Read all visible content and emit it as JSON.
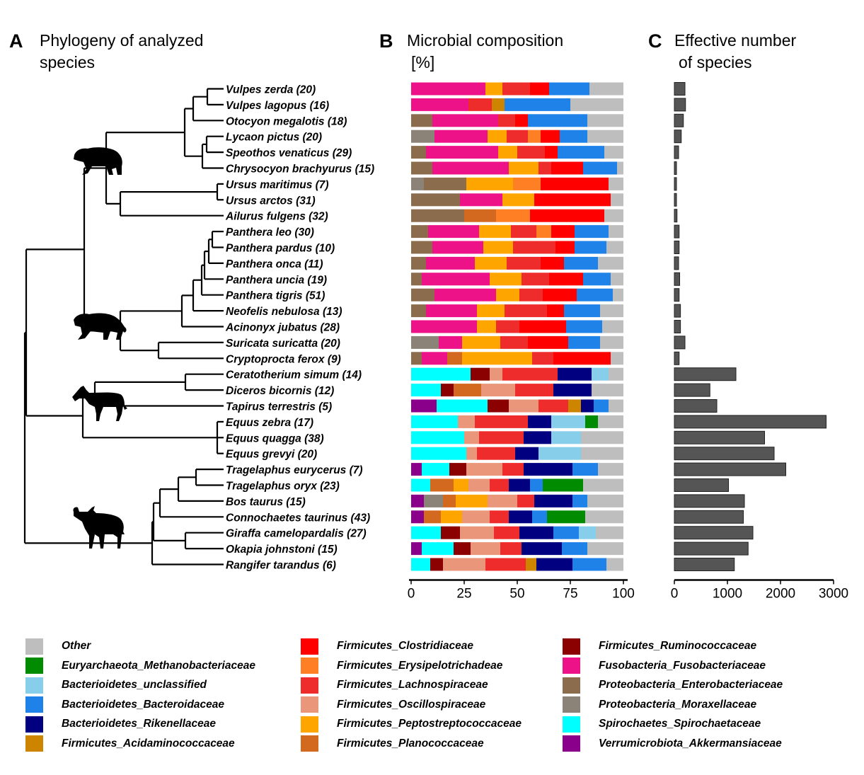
{
  "panels": {
    "A": {
      "letter": "A",
      "title_line1": "Phylogeny of analyzed",
      "title_line2": "species"
    },
    "B": {
      "letter": "B",
      "title_line1": "Microbial composition",
      "title_line2": "[%]"
    },
    "C": {
      "letter": "C",
      "title_line1": "Effective number",
      "title_line2": "of species"
    }
  },
  "silhouettes": [
    "bear-icon",
    "tiger-icon",
    "zebra-icon",
    "wildebeest-icon"
  ],
  "families": [
    {
      "key": "other",
      "label": "Other",
      "color": "#bebebe"
    },
    {
      "key": "methano",
      "label": "Euryarchaeota_Methanobacteriaceae",
      "color": "#008b00"
    },
    {
      "key": "bunclass",
      "label": "Bacterioidetes_unclassified",
      "color": "#87ceeb"
    },
    {
      "key": "bacteroid",
      "label": "Bacterioidetes_Bacteroidaceae",
      "color": "#1e82e8"
    },
    {
      "key": "riken",
      "label": "Bacterioidetes_Rikenellaceae",
      "color": "#000080"
    },
    {
      "key": "acidamino",
      "label": "Firmicutes_Acidaminococcaceae",
      "color": "#cd8500"
    },
    {
      "key": "clostrid",
      "label": "Firmicutes_Clostridiaceae",
      "color": "#ff0000"
    },
    {
      "key": "erysip",
      "label": "Firmicutes_Erysipelotrichadeae",
      "color": "#ff7f24"
    },
    {
      "key": "lachno",
      "label": "Firmicutes_Lachnospiraceae",
      "color": "#ee2c2c"
    },
    {
      "key": "oscill",
      "label": "Firmicutes_Oscillospiraceae",
      "color": "#e9967a"
    },
    {
      "key": "pepto",
      "label": "Firmicutes_Peptostreptococcaceae",
      "color": "#ffa500"
    },
    {
      "key": "planoc",
      "label": "Firmicutes_Planococcaceae",
      "color": "#d2691e"
    },
    {
      "key": "rumino",
      "label": "Firmicutes_Ruminococcaceae",
      "color": "#8b0000"
    },
    {
      "key": "fuso",
      "label": "Fusobacteria_Fusobacteriaceae",
      "color": "#ee1289"
    },
    {
      "key": "entero",
      "label": "Proteobacteria_Enterobacteriaceae",
      "color": "#8b6d4e"
    },
    {
      "key": "morax",
      "label": "Proteobacteria_Moraxellaceae",
      "color": "#8b8378"
    },
    {
      "key": "spiro",
      "label": "Spirochaetes_Spirochaetaceae",
      "color": "#00ffff"
    },
    {
      "key": "akker",
      "label": "Verrumicrobiota_Akkermansiaceae",
      "color": "#8b008b"
    }
  ],
  "chart_data": [
    {
      "type": "bar",
      "orientation": "horizontal-stacked",
      "title": "Microbial composition [%]",
      "xlabel": "",
      "ylabel": "",
      "xlim": [
        0,
        100
      ],
      "xticks": [
        "0",
        "25",
        "50",
        "75",
        "100"
      ],
      "legend": "bottom",
      "categories": [
        "Vulpes zerda (20)",
        "Vulpes lagopus (16)",
        "Otocyon megalotis (18)",
        "Lycaon pictus (20)",
        "Speothos venaticus (29)",
        "Chrysocyon brachyurus (15)",
        "Ursus maritimus (7)",
        "Ursus arctos (31)",
        "Ailurus fulgens (32)",
        "Panthera leo (30)",
        "Panthera pardus (10)",
        "Panthera onca (11)",
        "Panthera uncia (19)",
        "Panthera tigris (51)",
        "Neofelis nebulosa (13)",
        "Acinonyx jubatus (28)",
        "Suricata suricatta (20)",
        "Cryptoprocta ferox (9)",
        "Ceratotherium simum (14)",
        "Diceros bicornis (12)",
        "Tapirus terrestris (5)",
        "Equus zebra (17)",
        "Equus quagga (38)",
        "Equus grevyi (20)",
        "Tragelaphus eurycerus (7)",
        "Tragelaphus oryx (23)",
        "Bos taurus (15)",
        "Connochaetes taurinus (43)",
        "Giraffa camelopardalis (27)",
        "Okapia johnstoni (15)",
        "Rangifer tarandus (6)"
      ],
      "stacks": [
        [
          [
            "fuso",
            35
          ],
          [
            "pepto",
            8
          ],
          [
            "lachno",
            13
          ],
          [
            "clostrid",
            9
          ],
          [
            "bacteroid",
            19
          ],
          [
            "other",
            16
          ]
        ],
        [
          [
            "fuso",
            27
          ],
          [
            "lachno",
            11
          ],
          [
            "acidamino",
            6
          ],
          [
            "bacteroid",
            31
          ],
          [
            "other",
            25
          ]
        ],
        [
          [
            "entero",
            10
          ],
          [
            "fuso",
            31
          ],
          [
            "lachno",
            8
          ],
          [
            "clostrid",
            6
          ],
          [
            "bacteroid",
            28
          ],
          [
            "other",
            17
          ]
        ],
        [
          [
            "morax",
            11
          ],
          [
            "fuso",
            25
          ],
          [
            "pepto",
            9
          ],
          [
            "lachno",
            10
          ],
          [
            "erysip",
            6
          ],
          [
            "clostrid",
            9
          ],
          [
            "bacteroid",
            13
          ],
          [
            "other",
            17
          ]
        ],
        [
          [
            "entero",
            7
          ],
          [
            "fuso",
            34
          ],
          [
            "pepto",
            9
          ],
          [
            "lachno",
            13
          ],
          [
            "clostrid",
            6
          ],
          [
            "bacteroid",
            22
          ],
          [
            "other",
            9
          ]
        ],
        [
          [
            "entero",
            10
          ],
          [
            "fuso",
            36
          ],
          [
            "pepto",
            14
          ],
          [
            "lachno",
            6
          ],
          [
            "clostrid",
            15
          ],
          [
            "bacteroid",
            16
          ],
          [
            "other",
            3
          ]
        ],
        [
          [
            "morax",
            6
          ],
          [
            "entero",
            20
          ],
          [
            "pepto",
            22
          ],
          [
            "erysip",
            13
          ],
          [
            "clostrid",
            32
          ],
          [
            "other",
            7
          ]
        ],
        [
          [
            "entero",
            23
          ],
          [
            "fuso",
            20
          ],
          [
            "pepto",
            15
          ],
          [
            "clostrid",
            36
          ],
          [
            "other",
            6
          ]
        ],
        [
          [
            "entero",
            25
          ],
          [
            "planoc",
            15
          ],
          [
            "erysip",
            16
          ],
          [
            "clostrid",
            35
          ],
          [
            "other",
            9
          ]
        ],
        [
          [
            "entero",
            8
          ],
          [
            "fuso",
            24
          ],
          [
            "pepto",
            15
          ],
          [
            "lachno",
            12
          ],
          [
            "erysip",
            7
          ],
          [
            "clostrid",
            11
          ],
          [
            "bacteroid",
            16
          ],
          [
            "other",
            7
          ]
        ],
        [
          [
            "entero",
            10
          ],
          [
            "fuso",
            24
          ],
          [
            "pepto",
            14
          ],
          [
            "lachno",
            20
          ],
          [
            "clostrid",
            9
          ],
          [
            "bacteroid",
            15
          ],
          [
            "other",
            8
          ]
        ],
        [
          [
            "entero",
            7
          ],
          [
            "fuso",
            23
          ],
          [
            "pepto",
            15
          ],
          [
            "lachno",
            16
          ],
          [
            "clostrid",
            11
          ],
          [
            "bacteroid",
            16
          ],
          [
            "other",
            12
          ]
        ],
        [
          [
            "entero",
            5
          ],
          [
            "fuso",
            32
          ],
          [
            "pepto",
            15
          ],
          [
            "lachno",
            13
          ],
          [
            "clostrid",
            16
          ],
          [
            "bacteroid",
            13
          ],
          [
            "other",
            6
          ]
        ],
        [
          [
            "entero",
            11
          ],
          [
            "fuso",
            29
          ],
          [
            "pepto",
            11
          ],
          [
            "lachno",
            11
          ],
          [
            "clostrid",
            16
          ],
          [
            "bacteroid",
            17
          ],
          [
            "other",
            5
          ]
        ],
        [
          [
            "entero",
            7
          ],
          [
            "fuso",
            24
          ],
          [
            "pepto",
            13
          ],
          [
            "lachno",
            20
          ],
          [
            "clostrid",
            8
          ],
          [
            "bacteroid",
            17
          ],
          [
            "other",
            11
          ]
        ],
        [
          [
            "fuso",
            31
          ],
          [
            "pepto",
            9
          ],
          [
            "lachno",
            11
          ],
          [
            "clostrid",
            22
          ],
          [
            "bacteroid",
            17
          ],
          [
            "other",
            10
          ]
        ],
        [
          [
            "morax",
            13
          ],
          [
            "fuso",
            11
          ],
          [
            "pepto",
            18
          ],
          [
            "lachno",
            13
          ],
          [
            "clostrid",
            19
          ],
          [
            "bacteroid",
            15
          ],
          [
            "other",
            11
          ]
        ],
        [
          [
            "entero",
            5
          ],
          [
            "fuso",
            12
          ],
          [
            "planoc",
            7
          ],
          [
            "pepto",
            33
          ],
          [
            "lachno",
            10
          ],
          [
            "clostrid",
            27
          ],
          [
            "other",
            6
          ]
        ],
        [
          [
            "spiro",
            28
          ],
          [
            "rumino",
            9
          ],
          [
            "oscill",
            6
          ],
          [
            "lachno",
            26
          ],
          [
            "riken",
            16
          ],
          [
            "bunclass",
            8
          ],
          [
            "other",
            7
          ]
        ],
        [
          [
            "spiro",
            14
          ],
          [
            "rumino",
            6
          ],
          [
            "planoc",
            13
          ],
          [
            "oscill",
            16
          ],
          [
            "lachno",
            18
          ],
          [
            "riken",
            18
          ],
          [
            "other",
            15
          ]
        ],
        [
          [
            "akker",
            12
          ],
          [
            "spiro",
            24
          ],
          [
            "rumino",
            10
          ],
          [
            "oscill",
            14
          ],
          [
            "lachno",
            14
          ],
          [
            "acidamino",
            6
          ],
          [
            "riken",
            6
          ],
          [
            "bacteroid",
            7
          ],
          [
            "other",
            7
          ]
        ],
        [
          [
            "spiro",
            22
          ],
          [
            "oscill",
            8
          ],
          [
            "lachno",
            25
          ],
          [
            "riken",
            11
          ],
          [
            "bunclass",
            16
          ],
          [
            "methano",
            6
          ],
          [
            "other",
            12
          ]
        ],
        [
          [
            "spiro",
            25
          ],
          [
            "oscill",
            7
          ],
          [
            "lachno",
            21
          ],
          [
            "riken",
            13
          ],
          [
            "bunclass",
            14
          ],
          [
            "other",
            20
          ]
        ],
        [
          [
            "spiro",
            26
          ],
          [
            "oscill",
            5
          ],
          [
            "lachno",
            18
          ],
          [
            "riken",
            11
          ],
          [
            "bunclass",
            20
          ],
          [
            "other",
            20
          ]
        ],
        [
          [
            "akker",
            5
          ],
          [
            "spiro",
            13
          ],
          [
            "rumino",
            8
          ],
          [
            "oscill",
            17
          ],
          [
            "lachno",
            10
          ],
          [
            "riken",
            23
          ],
          [
            "bacteroid",
            12
          ],
          [
            "other",
            12
          ]
        ],
        [
          [
            "spiro",
            9
          ],
          [
            "planoc",
            11
          ],
          [
            "pepto",
            7
          ],
          [
            "oscill",
            10
          ],
          [
            "lachno",
            9
          ],
          [
            "riken",
            10
          ],
          [
            "bacteroid",
            6
          ],
          [
            "methano",
            19
          ],
          [
            "other",
            19
          ]
        ],
        [
          [
            "akker",
            6
          ],
          [
            "morax",
            9
          ],
          [
            "planoc",
            6
          ],
          [
            "pepto",
            15
          ],
          [
            "oscill",
            14
          ],
          [
            "lachno",
            8
          ],
          [
            "riken",
            18
          ],
          [
            "bacteroid",
            7
          ],
          [
            "other",
            17
          ]
        ],
        [
          [
            "akker",
            6
          ],
          [
            "planoc",
            8
          ],
          [
            "pepto",
            10
          ],
          [
            "oscill",
            13
          ],
          [
            "lachno",
            9
          ],
          [
            "riken",
            11
          ],
          [
            "bacteroid",
            7
          ],
          [
            "methano",
            18
          ],
          [
            "other",
            18
          ]
        ],
        [
          [
            "spiro",
            14
          ],
          [
            "rumino",
            9
          ],
          [
            "oscill",
            16
          ],
          [
            "lachno",
            12
          ],
          [
            "riken",
            16
          ],
          [
            "bacteroid",
            12
          ],
          [
            "bunclass",
            8
          ],
          [
            "other",
            13
          ]
        ],
        [
          [
            "akker",
            5
          ],
          [
            "spiro",
            15
          ],
          [
            "rumino",
            8
          ],
          [
            "oscill",
            14
          ],
          [
            "lachno",
            10
          ],
          [
            "riken",
            19
          ],
          [
            "bacteroid",
            12
          ],
          [
            "other",
            17
          ]
        ],
        [
          [
            "spiro",
            9
          ],
          [
            "rumino",
            6
          ],
          [
            "oscill",
            20
          ],
          [
            "lachno",
            19
          ],
          [
            "acidamino",
            5
          ],
          [
            "riken",
            17
          ],
          [
            "bacteroid",
            16
          ],
          [
            "other",
            8
          ]
        ]
      ]
    },
    {
      "type": "bar",
      "orientation": "horizontal",
      "title": "Effective number of species",
      "xlabel": "",
      "ylabel": "",
      "xlim": [
        0,
        3000
      ],
      "xticks": [
        "0",
        "1000",
        "2000",
        "3000"
      ],
      "bar_color": "#555555",
      "values": [
        200,
        210,
        170,
        130,
        80,
        40,
        40,
        40,
        50,
        90,
        90,
        80,
        100,
        90,
        115,
        115,
        200,
        90,
        1160,
        670,
        800,
        2860,
        1700,
        1880,
        2100,
        1020,
        1320,
        1300,
        1480,
        1390,
        1130
      ]
    }
  ]
}
